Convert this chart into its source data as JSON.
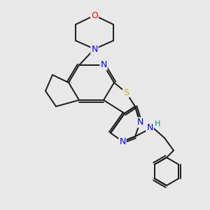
{
  "background_color": "#e8e8e8",
  "bond_color": "#1a1a1a",
  "atom_colors": {
    "N": "#0000ff",
    "O": "#ff0000",
    "S": "#ccaa00",
    "H": "#009090",
    "C": "#1a1a1a"
  },
  "figsize": [
    3.0,
    3.0
  ],
  "dpi": 100
}
